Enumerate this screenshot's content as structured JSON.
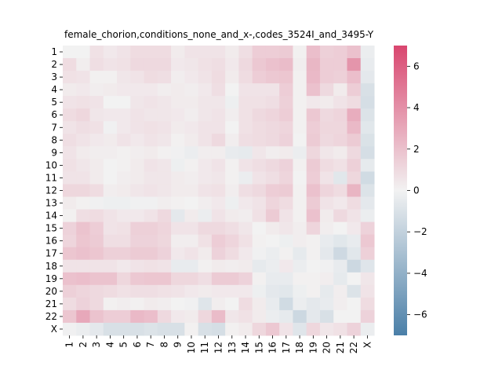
{
  "chart_data": {
    "type": "heatmap",
    "title": "female_chorion,conditions_none_and_x-,codes_3524I_and_3495-Y",
    "xlabel": "",
    "ylabel": "",
    "x_categories": [
      "1",
      "2",
      "3",
      "4",
      "5",
      "6",
      "7",
      "8",
      "9",
      "10",
      "11",
      "12",
      "13",
      "14",
      "15",
      "16",
      "17",
      "18",
      "19",
      "20",
      "21",
      "22",
      "X"
    ],
    "y_categories": [
      "1",
      "2",
      "3",
      "4",
      "5",
      "6",
      "7",
      "8",
      "9",
      "10",
      "11",
      "12",
      "13",
      "14",
      "15",
      "16",
      "17",
      "18",
      "19",
      "20",
      "21",
      "22",
      "X"
    ],
    "colorbar": {
      "vmin": -7,
      "vmax": 7,
      "ticks": [
        -6,
        -4,
        -2,
        0,
        2,
        4,
        6
      ],
      "low_color": "#4a7fa8",
      "mid_color": "#f2f2f2",
      "high_color": "#d9466f"
    },
    "values": [
      [
        0.0,
        0.0,
        0.7,
        0.4,
        0.6,
        0.9,
        0.9,
        0.9,
        0.3,
        0.6,
        0.6,
        0.6,
        0.3,
        0.8,
        1.5,
        1.5,
        1.6,
        0.1,
        2.1,
        1.4,
        1.5,
        2.0,
        -0.3
      ],
      [
        0.9,
        0.2,
        0.8,
        0.6,
        0.7,
        1.0,
        1.0,
        1.0,
        0.4,
        0.5,
        0.7,
        0.8,
        0.4,
        1.0,
        1.7,
        2.0,
        2.2,
        0.2,
        2.4,
        1.5,
        1.5,
        3.8,
        -0.4
      ],
      [
        0.7,
        0.6,
        0.1,
        0.1,
        0.5,
        0.6,
        0.9,
        0.8,
        0.2,
        0.4,
        0.6,
        0.9,
        0.3,
        0.9,
        1.5,
        1.7,
        1.8,
        0.1,
        2.3,
        1.5,
        1.4,
        2.1,
        -0.6
      ],
      [
        0.3,
        0.4,
        0.2,
        0.3,
        0.4,
        0.4,
        0.4,
        0.2,
        0.3,
        0.2,
        0.4,
        0.8,
        0.0,
        0.6,
        0.6,
        0.6,
        1.5,
        0.1,
        2.0,
        1.0,
        0.3,
        1.5,
        -1.1
      ],
      [
        0.6,
        0.7,
        0.6,
        0.0,
        0.0,
        0.5,
        0.6,
        0.5,
        0.3,
        0.3,
        0.5,
        0.5,
        -0.2,
        0.7,
        0.7,
        0.8,
        1.4,
        0.1,
        0.4,
        0.3,
        0.6,
        0.9,
        -1.2
      ],
      [
        0.9,
        1.1,
        0.5,
        0.4,
        0.4,
        0.6,
        0.5,
        0.5,
        0.4,
        0.2,
        0.5,
        0.6,
        0.2,
        0.7,
        1.0,
        1.2,
        1.5,
        0.1,
        1.7,
        1.0,
        1.2,
        2.8,
        -0.9
      ],
      [
        0.6,
        0.8,
        0.7,
        -0.1,
        0.4,
        0.6,
        0.7,
        0.6,
        0.3,
        0.4,
        0.6,
        0.6,
        0.0,
        0.7,
        0.9,
        1.0,
        1.2,
        0.1,
        1.5,
        1.1,
        1.1,
        2.3,
        -0.7
      ],
      [
        0.8,
        0.6,
        0.4,
        0.3,
        0.6,
        0.4,
        0.6,
        0.5,
        0.1,
        0.3,
        0.6,
        1.0,
        0.2,
        0.8,
        0.9,
        1.0,
        1.3,
        0.0,
        1.6,
        1.0,
        1.2,
        1.6,
        -1.0
      ],
      [
        0.6,
        0.3,
        0.2,
        0.2,
        0.1,
        0.2,
        0.3,
        0.1,
        -0.1,
        -0.3,
        0.2,
        0.2,
        -0.4,
        -0.5,
        0.5,
        0.2,
        0.3,
        -0.3,
        1.1,
        0.5,
        0.3,
        1.0,
        -1.2
      ],
      [
        0.7,
        0.5,
        0.3,
        0.0,
        0.1,
        0.3,
        0.6,
        0.5,
        -0.2,
        0.1,
        0.4,
        0.6,
        0.1,
        0.6,
        0.8,
        1.0,
        1.3,
        0.1,
        1.6,
        0.9,
        0.7,
        1.4,
        -0.5
      ],
      [
        0.6,
        0.6,
        0.3,
        0.0,
        0.2,
        0.3,
        0.5,
        0.5,
        0.3,
        0.2,
        0.4,
        0.5,
        0.1,
        -0.3,
        0.6,
        0.8,
        1.2,
        0.0,
        1.5,
        0.6,
        -0.7,
        1.1,
        -1.4
      ],
      [
        1.1,
        1.1,
        0.9,
        0.2,
        0.3,
        0.5,
        0.6,
        0.5,
        0.3,
        0.3,
        0.6,
        0.7,
        0.2,
        0.8,
        1.0,
        1.5,
        1.6,
        0.1,
        2.0,
        1.2,
        0.9,
        2.5,
        -0.9
      ],
      [
        0.3,
        0.1,
        -0.1,
        -0.2,
        -0.2,
        -0.1,
        -0.1,
        0.2,
        0.1,
        0.0,
        0.2,
        0.4,
        -0.2,
        0.4,
        0.6,
        1.2,
        0.9,
        0.1,
        1.6,
        0.6,
        0.4,
        0.9,
        -0.6
      ],
      [
        0.1,
        0.8,
        0.9,
        0.6,
        0.4,
        0.4,
        0.6,
        1.0,
        -0.6,
        0.3,
        -0.3,
        0.6,
        0.3,
        0.2,
        0.7,
        1.6,
        0.6,
        0.1,
        2.0,
        0.3,
        1.0,
        0.6,
        -0.3
      ],
      [
        1.3,
        1.9,
        1.5,
        0.6,
        0.7,
        1.4,
        1.4,
        1.2,
        0.6,
        0.6,
        1.0,
        1.0,
        0.8,
        0.5,
        0.0,
        0.3,
        0.5,
        0.2,
        1.2,
        0.2,
        0.0,
        0.4,
        1.3
      ],
      [
        1.2,
        1.8,
        1.6,
        0.8,
        0.8,
        1.3,
        1.3,
        1.1,
        0.2,
        0.2,
        0.7,
        1.5,
        1.2,
        0.7,
        0.1,
        0.0,
        -0.2,
        0.2,
        0.1,
        -0.4,
        -0.7,
        -0.4,
        1.7
      ],
      [
        1.8,
        2.0,
        1.8,
        1.4,
        1.4,
        1.6,
        1.6,
        1.3,
        0.4,
        0.6,
        0.3,
        1.3,
        0.9,
        0.4,
        -0.1,
        -0.3,
        0.1,
        -0.5,
        0.1,
        -0.6,
        -1.5,
        -0.7,
        1.4
      ],
      [
        0.6,
        0.6,
        0.6,
        0.6,
        0.4,
        0.6,
        0.7,
        0.6,
        -0.4,
        -0.4,
        0.1,
        0.3,
        0.2,
        0.3,
        -0.5,
        -0.3,
        0.4,
        -0.3,
        0.0,
        -0.1,
        -0.4,
        -1.6,
        -0.8
      ],
      [
        2.0,
        2.1,
        1.9,
        1.9,
        1.1,
        1.7,
        1.8,
        1.8,
        1.1,
        1.1,
        0.8,
        1.6,
        1.6,
        1.3,
        0.1,
        -0.4,
        -0.4,
        0.1,
        0.1,
        0.2,
        -0.5,
        0.0,
        0.5
      ],
      [
        1.4,
        1.2,
        1.0,
        0.9,
        0.7,
        0.8,
        0.8,
        0.7,
        0.6,
        0.4,
        0.3,
        0.4,
        0.4,
        0.4,
        -0.2,
        -0.6,
        -0.7,
        -0.2,
        0.1,
        -0.5,
        0.2,
        -0.9,
        0.6
      ],
      [
        0.9,
        1.3,
        1.0,
        0.1,
        0.2,
        0.1,
        0.3,
        0.2,
        0.0,
        -0.1,
        -0.8,
        0.2,
        0.0,
        0.9,
        0.3,
        -0.4,
        -1.4,
        -0.3,
        -0.6,
        -0.4,
        0.2,
        0.0,
        0.9
      ],
      [
        1.8,
        3.0,
        1.9,
        1.5,
        1.5,
        2.3,
        2.1,
        1.0,
        0.4,
        0.3,
        1.1,
        2.2,
        0.5,
        0.7,
        0.3,
        -0.3,
        -0.5,
        -1.6,
        -0.6,
        -1.1,
        0.0,
        0.0,
        1.3
      ],
      [
        -0.1,
        -0.3,
        -0.6,
        -1.1,
        -1.1,
        -1.1,
        -0.9,
        -1.1,
        -1.1,
        0.1,
        -1.1,
        -1.2,
        0.1,
        0.3,
        1.1,
        1.7,
        0.6,
        -0.8,
        1.1,
        0.5,
        0.7,
        1.3,
        -0.3
      ]
    ]
  }
}
